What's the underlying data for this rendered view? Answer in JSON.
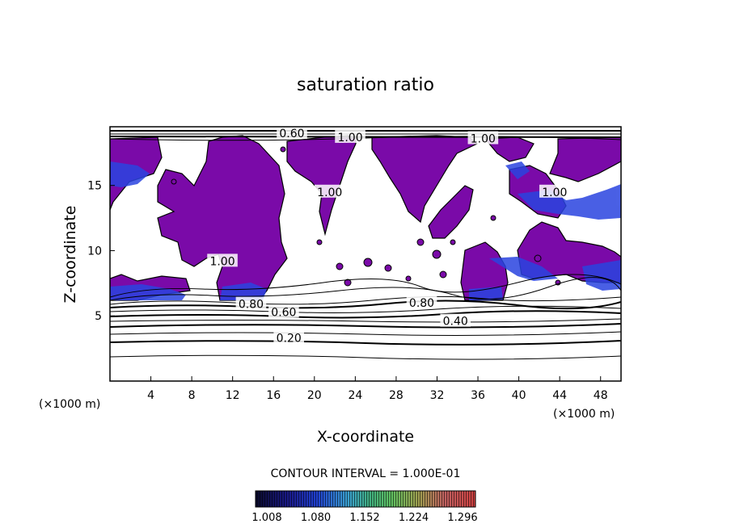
{
  "chart_data": {
    "type": "heatmap",
    "title": "saturation ratio",
    "xlabel": "X-coordinate",
    "ylabel": "Z-coordinate",
    "x_unit": "(×1000 m)",
    "y_unit": "(×1000 m)",
    "xlim": [
      0,
      50
    ],
    "ylim": [
      0,
      19.5
    ],
    "x_ticks": [
      "4",
      "8",
      "12",
      "16",
      "20",
      "24",
      "28",
      "32",
      "36",
      "40",
      "44",
      "48"
    ],
    "y_ticks": [
      "5",
      "10",
      "15"
    ],
    "contour_interval_text": "CONTOUR INTERVAL = 1.000E-01",
    "contour_labels": [
      {
        "text": "0.20",
        "x": 17.5,
        "y": 3.3
      },
      {
        "text": "0.40",
        "x": 33.8,
        "y": 4.6
      },
      {
        "text": "0.60",
        "x": 17.0,
        "y": 5.3
      },
      {
        "text": "0.80",
        "x": 13.8,
        "y": 5.9
      },
      {
        "text": "0.80",
        "x": 30.5,
        "y": 6.0
      },
      {
        "text": "0.60",
        "x": 17.8,
        "y": 19.0
      },
      {
        "text": "1.00",
        "x": 23.5,
        "y": 18.7
      },
      {
        "text": "1.00",
        "x": 36.5,
        "y": 18.6
      },
      {
        "text": "1.00",
        "x": 21.5,
        "y": 14.5
      },
      {
        "text": "1.00",
        "x": 43.5,
        "y": 14.5
      },
      {
        "text": "1.00",
        "x": 11.0,
        "y": 9.2
      }
    ],
    "colorbar": {
      "ticks": [
        "1.008",
        "1.080",
        "1.152",
        "1.224",
        "1.296"
      ],
      "colors": [
        "#0a0a2a",
        "#1a1a8a",
        "#2040d0",
        "#3aa0d0",
        "#40b080",
        "#60c060",
        "#a0a050",
        "#c06060",
        "#d04040"
      ]
    },
    "supersaturated_fill_color": "#7a0aa8",
    "high_supersaturation_color": "#2a44e0"
  }
}
